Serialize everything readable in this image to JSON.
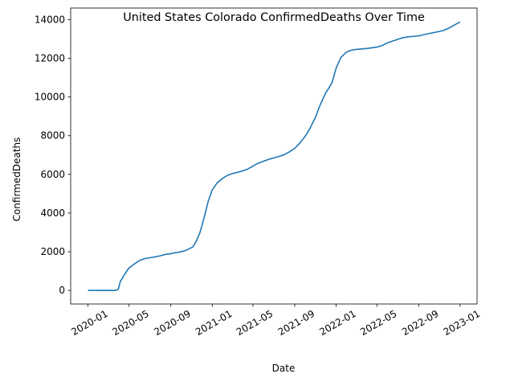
{
  "chart_data": {
    "type": "line",
    "title": "United States Colorado ConfirmedDeaths Over Time",
    "xlabel": "Date",
    "ylabel": "ConfirmedDeaths",
    "x_ticks": [
      "2020-01",
      "2020-05",
      "2020-09",
      "2021-01",
      "2021-05",
      "2021-09",
      "2022-01",
      "2022-05",
      "2022-09",
      "2023-01"
    ],
    "y_ticks": [
      0,
      2000,
      4000,
      6000,
      8000,
      10000,
      12000,
      14000
    ],
    "xlim": [
      "2019-11-11",
      "2023-02-20"
    ],
    "ylim": [
      -700,
      14600
    ],
    "grid": false,
    "line_color": "#1f77b4",
    "series": [
      {
        "x": [
          "2020-01-01",
          "2020-02-01",
          "2020-03-01",
          "2020-03-20",
          "2020-03-28",
          "2020-03-31",
          "2020-04-05",
          "2020-04-15",
          "2020-04-30",
          "2020-05-15",
          "2020-06-01",
          "2020-06-15",
          "2020-07-01",
          "2020-07-15",
          "2020-08-01",
          "2020-08-15",
          "2020-09-01",
          "2020-09-15",
          "2020-10-01",
          "2020-10-15",
          "2020-10-25",
          "2020-11-05",
          "2020-11-15",
          "2020-11-25",
          "2020-12-01",
          "2020-12-10",
          "2020-12-20",
          "2021-01-01",
          "2021-01-15",
          "2021-02-01",
          "2021-02-15",
          "2021-03-01",
          "2021-03-15",
          "2021-04-01",
          "2021-04-15",
          "2021-05-01",
          "2021-05-15",
          "2021-06-01",
          "2021-06-15",
          "2021-07-01",
          "2021-07-15",
          "2021-08-01",
          "2021-08-15",
          "2021-09-01",
          "2021-09-15",
          "2021-10-01",
          "2021-10-15",
          "2021-11-01",
          "2021-11-15",
          "2021-12-01",
          "2021-12-10",
          "2021-12-20",
          "2022-01-01",
          "2022-01-15",
          "2022-02-01",
          "2022-02-15",
          "2022-03-01",
          "2022-04-01",
          "2022-05-01",
          "2022-05-15",
          "2022-06-01",
          "2022-07-01",
          "2022-07-15",
          "2022-08-01",
          "2022-09-01",
          "2022-10-01",
          "2022-11-01",
          "2022-11-15",
          "2022-12-01",
          "2022-12-15",
          "2023-01-01"
        ],
        "values": [
          0,
          0,
          0,
          0,
          30,
          100,
          450,
          750,
          1150,
          1350,
          1550,
          1640,
          1690,
          1730,
          1790,
          1860,
          1900,
          1950,
          2000,
          2070,
          2150,
          2250,
          2550,
          2950,
          3300,
          3900,
          4600,
          5200,
          5550,
          5800,
          5950,
          6040,
          6100,
          6180,
          6270,
          6430,
          6570,
          6680,
          6770,
          6850,
          6920,
          7020,
          7150,
          7350,
          7600,
          7950,
          8350,
          8950,
          9600,
          10200,
          10450,
          10750,
          11500,
          12050,
          12330,
          12420,
          12460,
          12510,
          12580,
          12650,
          12800,
          12980,
          13060,
          13110,
          13160,
          13280,
          13390,
          13450,
          13580,
          13720,
          13880
        ]
      }
    ]
  }
}
